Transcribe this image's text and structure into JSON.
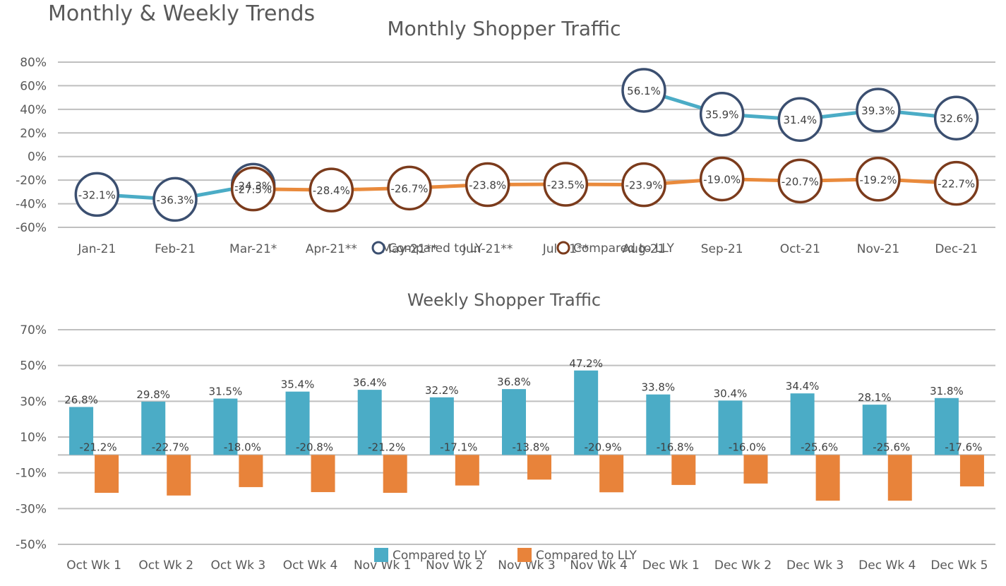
{
  "page_title": "Monthly & Weekly Trends",
  "colors": {
    "ly_line": "#4bacc6",
    "ly_marker": "#3b4f70",
    "lly_line": "#e98a3c",
    "lly_marker": "#7b3b1c",
    "ly_bar": "#4bacc6",
    "lly_bar": "#e8833a"
  },
  "chart_data": [
    {
      "type": "line",
      "title": "Monthly Shopper Traffic",
      "categories": [
        "Jan-21",
        "Feb-21",
        "Mar-21*",
        "Apr-21**",
        "May-21**",
        "Jun-21**",
        "Jul-21**",
        "Aug-21",
        "Sep-21",
        "Oct-21",
        "Nov-21",
        "Dec-21"
      ],
      "series": [
        {
          "name": "Compared to LY",
          "values": [
            -32.1,
            -36.3,
            -24.3,
            null,
            null,
            null,
            null,
            56.1,
            35.9,
            31.4,
            39.3,
            32.6
          ],
          "labels": [
            "-32.1%",
            "-36.3%",
            "-24.3%",
            "",
            "",
            "",
            "",
            "56.1%",
            "35.9%",
            "31.4%",
            "39.3%",
            "32.6%"
          ]
        },
        {
          "name": "Compared to LLY",
          "values": [
            null,
            null,
            -27.5,
            -28.4,
            -26.7,
            -23.8,
            -23.5,
            -23.9,
            -19.0,
            -20.7,
            -19.2,
            -22.7
          ],
          "labels": [
            "",
            "",
            "-27.5%",
            "-28.4%",
            "-26.7%",
            "-23.8%",
            "-23.5%",
            "-23.9%",
            "-19.0%",
            "-20.7%",
            "-19.2%",
            "-22.7%"
          ]
        }
      ],
      "ylim": [
        -60,
        80
      ],
      "yticks": [
        "80%",
        "60%",
        "40%",
        "20%",
        "0%",
        "-20%",
        "-40%",
        "-60%"
      ],
      "grid": true,
      "legend_position": "bottom-center"
    },
    {
      "type": "bar",
      "title": "Weekly Shopper Traffic",
      "categories": [
        "Oct Wk 1",
        "Oct Wk 2",
        "Oct Wk 3",
        "Oct Wk 4",
        "Nov Wk 1",
        "Nov Wk 2",
        "Nov Wk 3",
        "Nov Wk 4",
        "Dec Wk 1",
        "Dec Wk 2",
        "Dec Wk 3",
        "Dec Wk 4",
        "Dec Wk 5"
      ],
      "series": [
        {
          "name": "Compared to LY",
          "values": [
            26.8,
            29.8,
            31.5,
            35.4,
            36.4,
            32.2,
            36.8,
            47.2,
            33.8,
            30.4,
            34.4,
            28.1,
            31.8
          ],
          "labels": [
            "26.8%",
            "29.8%",
            "31.5%",
            "35.4%",
            "36.4%",
            "32.2%",
            "36.8%",
            "47.2%",
            "33.8%",
            "30.4%",
            "34.4%",
            "28.1%",
            "31.8%"
          ]
        },
        {
          "name": "Compared to LLY",
          "values": [
            -21.2,
            -22.7,
            -18.0,
            -20.8,
            -21.2,
            -17.1,
            -13.8,
            -20.9,
            -16.8,
            -16.0,
            -25.6,
            -25.6,
            -17.6
          ],
          "labels": [
            "-21.2%",
            "-22.7%",
            "-18.0%",
            "-20.8%",
            "-21.2%",
            "-17.1%",
            "-13.8%",
            "-20.9%",
            "-16.8%",
            "-16.0%",
            "-25.6%",
            "-25.6%",
            "-17.6%"
          ]
        }
      ],
      "ylim": [
        -50,
        70
      ],
      "yticks": [
        "70%",
        "50%",
        "30%",
        "10%",
        "-10%",
        "-30%",
        "-50%"
      ],
      "grid": true,
      "legend_position": "bottom-center"
    }
  ]
}
